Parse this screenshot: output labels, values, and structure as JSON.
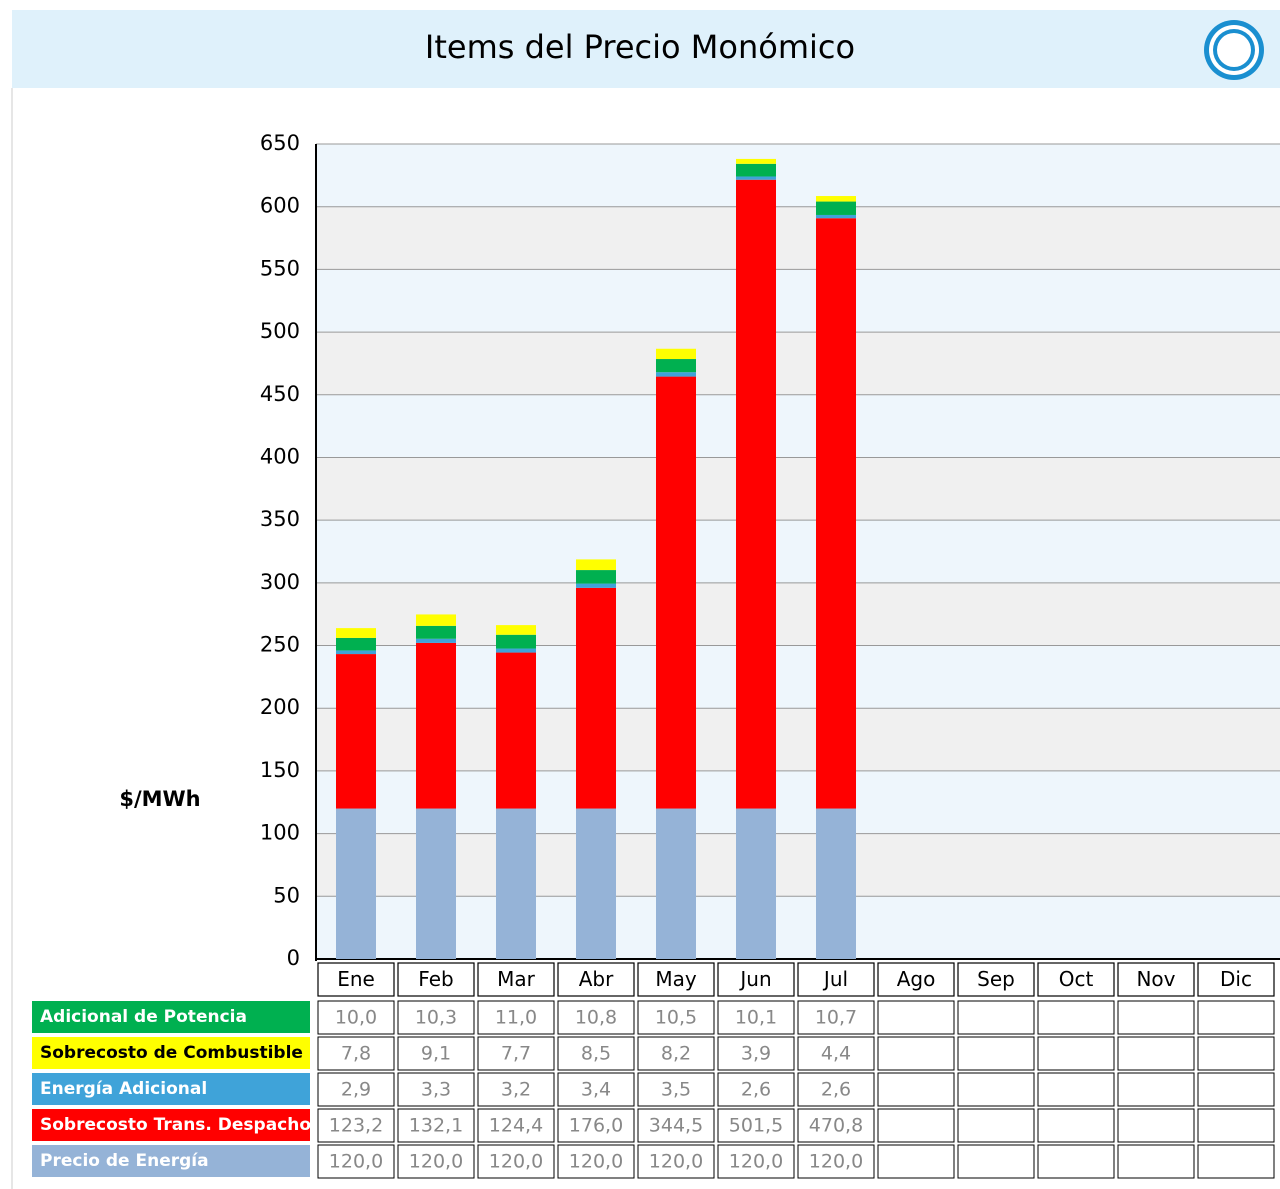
{
  "chart_data": {
    "type": "stacked_bar",
    "title": "Items del Precio Monómico",
    "y_label": "$/MWh",
    "categories": [
      "Ene",
      "Feb",
      "Mar",
      "Abr",
      "May",
      "Jun",
      "Jul",
      "Ago",
      "Sep",
      "Oct",
      "Nov",
      "Dic"
    ],
    "series": [
      {
        "name": "Adicional de Potencia",
        "color": "#00b050",
        "values": [
          10.0,
          10.3,
          11.0,
          10.8,
          10.5,
          10.1,
          10.7,
          null,
          null,
          null,
          null,
          null
        ],
        "value_labels": [
          "10,0",
          "10,3",
          "11,0",
          "10,8",
          "10,5",
          "10,1",
          "10,7",
          null,
          null,
          null,
          null,
          null
        ]
      },
      {
        "name": "Sobrecosto de Combustible",
        "color": "#ffff00",
        "values": [
          7.8,
          9.1,
          7.7,
          8.5,
          8.2,
          3.9,
          4.4,
          null,
          null,
          null,
          null,
          null
        ],
        "value_labels": [
          "7,8",
          "9,1",
          "7,7",
          "8,5",
          "8,2",
          "3,9",
          "4,4",
          null,
          null,
          null,
          null,
          null
        ]
      },
      {
        "name": "Energía Adicional",
        "color": "#3fa3d9",
        "values": [
          2.9,
          3.3,
          3.2,
          3.4,
          3.5,
          2.6,
          2.6,
          null,
          null,
          null,
          null,
          null
        ],
        "value_labels": [
          "2,9",
          "3,3",
          "3,2",
          "3,4",
          "3,5",
          "2,6",
          "2,6",
          null,
          null,
          null,
          null,
          null
        ]
      },
      {
        "name": "Sobrecosto Trans. Despacho",
        "color": "#ff0000",
        "values": [
          123.2,
          132.1,
          124.4,
          176.0,
          344.5,
          501.5,
          470.8,
          null,
          null,
          null,
          null,
          null
        ],
        "value_labels": [
          "123,2",
          "132,1",
          "124,4",
          "176,0",
          "344,5",
          "501,5",
          "470,8",
          null,
          null,
          null,
          null,
          null
        ]
      },
      {
        "name": "Precio de Energía",
        "color": "#95b3d7",
        "values": [
          120.0,
          120.0,
          120.0,
          120.0,
          120.0,
          120.0,
          120.0,
          null,
          null,
          null,
          null,
          null
        ],
        "value_labels": [
          "120,0",
          "120,0",
          "120,0",
          "120,0",
          "120,0",
          "120,0",
          "120,0",
          null,
          null,
          null,
          null,
          null
        ]
      }
    ],
    "ylim": [
      0,
      650
    ],
    "yticks": [
      0,
      50,
      100,
      150,
      200,
      250,
      300,
      350,
      400,
      450,
      500,
      550,
      600,
      650
    ],
    "grid": true
  }
}
